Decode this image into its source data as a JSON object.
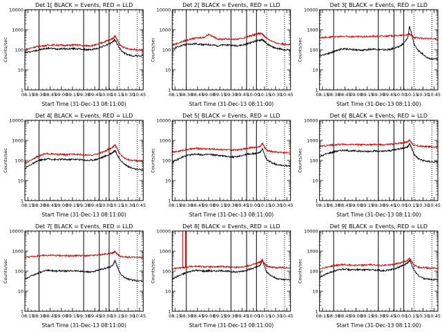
{
  "figure": {
    "background": "#ffffff"
  },
  "common": {
    "ylabel": "Counts/sec",
    "xlabel": "Start Time (31-Dec-13 08:11:00)",
    "xlim": [
      8.1833,
      10.8333
    ],
    "ylim": [
      1,
      10000
    ],
    "yscale": "log",
    "xticks": [
      "08:15",
      "08:30",
      "08:45",
      "09:00",
      "09:15",
      "09:30",
      "09:45",
      "10:00",
      "10:15",
      "10:30",
      "10:45"
    ],
    "yticks": [
      "1",
      "10",
      "100",
      "1000",
      "10000"
    ],
    "black_color": "#000000",
    "red_color": "#d40000"
  },
  "chart_data": [
    {
      "type": "line",
      "title": "Det 1[ BLACK = Events, RED = LLD",
      "x_hours": [
        8.1833,
        8.3,
        8.42,
        8.5,
        8.6,
        8.7,
        8.8,
        8.9,
        9.0,
        9.1,
        9.2,
        9.3,
        9.4,
        9.5,
        9.6,
        9.7,
        9.8,
        9.9,
        10.0,
        10.08,
        10.16,
        10.2,
        10.25,
        10.3,
        10.4,
        10.5,
        10.6,
        10.7,
        10.8333
      ],
      "series": [
        {
          "color": "black",
          "values": [
            70,
            80,
            90,
            100,
            110,
            120,
            115,
            110,
            115,
            110,
            112,
            115,
            110,
            105,
            100,
            105,
            115,
            140,
            170,
            200,
            260,
            320,
            200,
            120,
            70,
            55,
            50,
            50,
            50
          ]
        },
        {
          "color": "red",
          "values": [
            100,
            120,
            140,
            150,
            160,
            170,
            175,
            170,
            170,
            165,
            170,
            175,
            170,
            160,
            160,
            165,
            180,
            220,
            270,
            310,
            380,
            500,
            320,
            180,
            130,
            110,
            105,
            100,
            100
          ]
        }
      ],
      "vlines_solid": [
        8.5,
        9.5,
        9.85,
        10.07
      ],
      "vlines_dotted": [
        10.3,
        10.7
      ],
      "red_spike": null
    },
    {
      "type": "line",
      "title": "Det 2[ BLACK = Events, RED = LLD",
      "x_hours": [
        8.1833,
        8.3,
        8.42,
        8.5,
        8.6,
        8.7,
        8.8,
        8.9,
        9.0,
        9.1,
        9.2,
        9.3,
        9.4,
        9.5,
        9.6,
        9.7,
        9.8,
        9.9,
        10.0,
        10.08,
        10.16,
        10.2,
        10.25,
        10.3,
        10.4,
        10.5,
        10.6,
        10.7,
        10.8333
      ],
      "series": [
        {
          "color": "black",
          "values": [
            110,
            140,
            170,
            180,
            190,
            200,
            190,
            180,
            180,
            170,
            160,
            170,
            180,
            170,
            160,
            165,
            180,
            210,
            250,
            280,
            300,
            320,
            260,
            200,
            150,
            120,
            110,
            100,
            100
          ]
        },
        {
          "color": "red",
          "values": [
            170,
            210,
            260,
            300,
            340,
            380,
            400,
            420,
            600,
            450,
            350,
            340,
            350,
            340,
            330,
            350,
            400,
            470,
            550,
            620,
            650,
            600,
            480,
            380,
            280,
            220,
            200,
            190,
            190
          ]
        }
      ],
      "vlines_solid": [
        8.5,
        9.5,
        9.85,
        10.07
      ],
      "vlines_dotted": [
        10.3,
        10.7
      ],
      "red_spike": null
    },
    {
      "type": "line",
      "title": "Det 3[ BLACK = Events, RED = LLD",
      "x_hours": [
        8.1833,
        8.3,
        8.42,
        8.5,
        8.6,
        8.7,
        8.8,
        8.9,
        9.0,
        9.1,
        9.2,
        9.3,
        9.4,
        9.5,
        9.6,
        9.7,
        9.8,
        9.9,
        10.0,
        10.08,
        10.16,
        10.2,
        10.25,
        10.3,
        10.4,
        10.5,
        10.6,
        10.7,
        10.8333
      ],
      "series": [
        {
          "color": "black",
          "values": [
            50,
            60,
            70,
            80,
            100,
            110,
            110,
            105,
            100,
            95,
            100,
            105,
            110,
            105,
            100,
            100,
            110,
            130,
            160,
            220,
            400,
            1500,
            600,
            200,
            90,
            60,
            40,
            35,
            35
          ]
        },
        {
          "color": "red",
          "values": [
            400,
            420,
            430,
            440,
            450,
            460,
            460,
            455,
            450,
            445,
            450,
            460,
            470,
            470,
            480,
            490,
            500,
            510,
            520,
            540,
            560,
            600,
            500,
            420,
            390,
            370,
            360,
            350,
            350
          ]
        }
      ],
      "vlines_solid": [
        8.5,
        9.5,
        9.85,
        10.07
      ],
      "vlines_dotted": [
        10.3,
        10.7
      ],
      "red_spike": null
    },
    {
      "type": "line",
      "title": "Det 4[ BLACK = Events, RED = LLD",
      "x_hours": [
        8.1833,
        8.3,
        8.42,
        8.5,
        8.6,
        8.7,
        8.8,
        8.9,
        9.0,
        9.1,
        9.2,
        9.3,
        9.4,
        9.5,
        9.6,
        9.7,
        9.8,
        9.9,
        10.0,
        10.08,
        10.16,
        10.2,
        10.25,
        10.3,
        10.4,
        10.5,
        10.6,
        10.7,
        10.8333
      ],
      "series": [
        {
          "color": "black",
          "values": [
            40,
            60,
            80,
            100,
            110,
            120,
            115,
            110,
            115,
            110,
            112,
            115,
            110,
            105,
            100,
            105,
            115,
            140,
            170,
            200,
            260,
            320,
            200,
            120,
            70,
            50,
            40,
            35,
            35
          ]
        },
        {
          "color": "red",
          "values": [
            70,
            100,
            140,
            170,
            200,
            220,
            210,
            200,
            200,
            190,
            200,
            210,
            200,
            190,
            180,
            190,
            210,
            250,
            300,
            380,
            480,
            600,
            400,
            220,
            140,
            110,
            100,
            95,
            95
          ]
        }
      ],
      "vlines_solid": [
        8.5,
        9.5,
        9.85,
        10.07
      ],
      "vlines_dotted": [
        10.3,
        10.7
      ],
      "red_spike": null
    },
    {
      "type": "line",
      "title": "Det 5[ BLACK = Events, RED = LLD",
      "x_hours": [
        8.1833,
        8.3,
        8.42,
        8.5,
        8.6,
        8.7,
        8.8,
        8.9,
        9.0,
        9.1,
        9.2,
        9.3,
        9.4,
        9.5,
        9.6,
        9.7,
        9.8,
        9.9,
        10.0,
        10.08,
        10.16,
        10.2,
        10.25,
        10.3,
        10.4,
        10.5,
        10.6,
        10.7,
        10.8333
      ],
      "series": [
        {
          "color": "black",
          "values": [
            80,
            110,
            150,
            170,
            190,
            210,
            200,
            190,
            200,
            190,
            180,
            170,
            160,
            150,
            150,
            170,
            190,
            210,
            220,
            230,
            260,
            400,
            200,
            110,
            80,
            65,
            60,
            55,
            55
          ]
        },
        {
          "color": "red",
          "values": [
            250,
            280,
            320,
            350,
            370,
            400,
            390,
            380,
            380,
            370,
            360,
            350,
            340,
            330,
            340,
            360,
            390,
            420,
            450,
            470,
            500,
            750,
            450,
            320,
            280,
            260,
            250,
            250,
            250
          ]
        }
      ],
      "vlines_solid": [
        8.5,
        9.5,
        9.85,
        10.07
      ],
      "vlines_dotted": [
        10.3,
        10.7
      ],
      "red_spike": null
    },
    {
      "type": "line",
      "title": "Det 6[ BLACK = Events, RED = LLD",
      "x_hours": [
        8.1833,
        8.3,
        8.42,
        8.5,
        8.6,
        8.7,
        8.8,
        8.9,
        9.0,
        9.1,
        9.2,
        9.3,
        9.4,
        9.5,
        9.6,
        9.7,
        9.8,
        9.9,
        10.0,
        10.08,
        10.16,
        10.2,
        10.25,
        10.3,
        10.4,
        10.5,
        10.6,
        10.7,
        10.8333
      ],
      "series": [
        {
          "color": "black",
          "values": [
            150,
            200,
            240,
            270,
            300,
            320,
            310,
            300,
            300,
            290,
            280,
            290,
            300,
            290,
            280,
            300,
            320,
            360,
            400,
            420,
            480,
            700,
            400,
            200,
            120,
            100,
            90,
            85,
            85
          ]
        },
        {
          "color": "red",
          "values": [
            500,
            540,
            580,
            600,
            620,
            640,
            630,
            620,
            620,
            610,
            600,
            610,
            620,
            610,
            600,
            620,
            650,
            700,
            750,
            800,
            850,
            1100,
            700,
            560,
            520,
            500,
            490,
            480,
            480
          ]
        }
      ],
      "vlines_solid": [
        8.5,
        9.5,
        9.85,
        10.07
      ],
      "vlines_dotted": [
        10.3,
        10.7
      ],
      "red_spike": null
    },
    {
      "type": "line",
      "title": "Det 7[ BLACK = Events, RED = LLD",
      "x_hours": [
        8.1833,
        8.3,
        8.42,
        8.5,
        8.6,
        8.7,
        8.8,
        8.9,
        9.0,
        9.1,
        9.2,
        9.3,
        9.4,
        9.5,
        9.6,
        9.7,
        9.8,
        9.9,
        10.0,
        10.08,
        10.16,
        10.2,
        10.25,
        10.3,
        10.4,
        10.5,
        10.6,
        10.7,
        10.8333
      ],
      "series": [
        {
          "color": "black",
          "values": [
            40,
            55,
            70,
            85,
            100,
            110,
            105,
            100,
            105,
            100,
            102,
            105,
            100,
            95,
            90,
            95,
            105,
            120,
            140,
            160,
            200,
            350,
            180,
            90,
            50,
            40,
            35,
            33,
            33
          ]
        },
        {
          "color": "red",
          "values": [
            500,
            520,
            550,
            580,
            600,
            620,
            610,
            600,
            600,
            590,
            580,
            590,
            600,
            590,
            580,
            600,
            630,
            680,
            720,
            760,
            800,
            950,
            700,
            560,
            520,
            500,
            490,
            480,
            480
          ]
        }
      ],
      "vlines_solid": [
        8.5,
        9.5,
        9.85,
        10.07
      ],
      "vlines_dotted": [
        10.3,
        10.7
      ],
      "red_spike": null
    },
    {
      "type": "line",
      "title": "Det 8[ BLACK = Events, RED = LLD",
      "x_hours": [
        8.1833,
        8.3,
        8.42,
        8.5,
        8.6,
        8.7,
        8.8,
        8.9,
        9.0,
        9.1,
        9.2,
        9.3,
        9.4,
        9.5,
        9.6,
        9.7,
        9.8,
        9.9,
        10.0,
        10.08,
        10.16,
        10.2,
        10.25,
        10.3,
        10.4,
        10.5,
        10.6,
        10.7,
        10.8333
      ],
      "series": [
        {
          "color": "black",
          "values": [
            40,
            55,
            70,
            85,
            100,
            110,
            105,
            100,
            105,
            100,
            102,
            105,
            100,
            95,
            90,
            95,
            105,
            120,
            140,
            160,
            200,
            380,
            180,
            90,
            60,
            45,
            40,
            38,
            38
          ]
        },
        {
          "color": "red",
          "values": [
            130,
            140,
            150,
            160,
            170,
            175,
            170,
            165,
            165,
            160,
            165,
            170,
            165,
            160,
            155,
            160,
            170,
            190,
            220,
            250,
            280,
            350,
            250,
            180,
            160,
            150,
            150,
            145,
            145
          ]
        }
      ],
      "vlines_solid": [
        8.5,
        9.5,
        9.85,
        10.07
      ],
      "vlines_dotted": [
        10.3,
        10.7
      ],
      "red_spike": {
        "x_start": 8.42,
        "x_end": 8.48,
        "peak": 10000
      }
    },
    {
      "type": "line",
      "title": "Det 9[ BLACK = Events, RED = LLD",
      "x_hours": [
        8.1833,
        8.3,
        8.42,
        8.5,
        8.6,
        8.7,
        8.8,
        8.9,
        9.0,
        9.1,
        9.2,
        9.3,
        9.4,
        9.5,
        9.6,
        9.7,
        9.8,
        9.9,
        10.0,
        10.08,
        10.16,
        10.2,
        10.25,
        10.3,
        10.4,
        10.5,
        10.6,
        10.7,
        10.8333
      ],
      "series": [
        {
          "color": "black",
          "values": [
            50,
            65,
            85,
            100,
            115,
            125,
            120,
            115,
            120,
            115,
            117,
            120,
            115,
            110,
            105,
            110,
            120,
            140,
            170,
            200,
            260,
            360,
            200,
            110,
            60,
            45,
            40,
            38,
            38
          ]
        },
        {
          "color": "red",
          "values": [
            130,
            150,
            170,
            190,
            200,
            210,
            205,
            200,
            200,
            195,
            200,
            210,
            205,
            200,
            195,
            200,
            210,
            230,
            260,
            300,
            340,
            450,
            300,
            200,
            160,
            150,
            145,
            140,
            140
          ]
        }
      ],
      "vlines_solid": [
        8.5,
        9.5,
        9.85,
        10.07
      ],
      "vlines_dotted": [
        10.3,
        10.7
      ],
      "red_spike": null
    }
  ]
}
